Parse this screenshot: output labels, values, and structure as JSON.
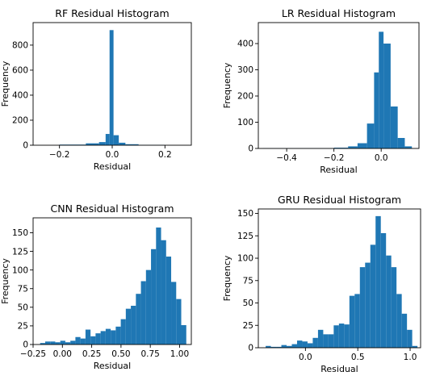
{
  "chart_data": [
    {
      "type": "bar",
      "title": "RF Residual Histogram",
      "xlabel": "Residual",
      "ylabel": "Frequency",
      "xlim": [
        -0.3,
        0.3
      ],
      "ylim": [
        0,
        980
      ],
      "xticks": [
        -0.2,
        0.0,
        0.2
      ],
      "xtick_labels": [
        "−0.2",
        "0.0",
        "0.2"
      ],
      "yticks": [
        0,
        200,
        400,
        600,
        800
      ],
      "ytick_labels": [
        "0",
        "200",
        "400",
        "600",
        "800"
      ],
      "color": "#1f77b4",
      "grid": false,
      "bins": [
        {
          "x0": -0.2,
          "x1": -0.1,
          "value": 5
        },
        {
          "x0": -0.1,
          "x1": -0.05,
          "value": 15
        },
        {
          "x0": -0.05,
          "x1": -0.025,
          "value": 25
        },
        {
          "x0": -0.025,
          "x1": -0.01,
          "value": 90
        },
        {
          "x0": -0.01,
          "x1": 0.005,
          "value": 920
        },
        {
          "x0": 0.005,
          "x1": 0.025,
          "value": 80
        },
        {
          "x0": 0.025,
          "x1": 0.05,
          "value": 20
        },
        {
          "x0": 0.05,
          "x1": 0.1,
          "value": 8
        },
        {
          "x0": 0.1,
          "x1": 0.2,
          "value": 3
        }
      ]
    },
    {
      "type": "bar",
      "title": "LR Residual Histogram",
      "xlabel": "Residual",
      "ylabel": "Frequency",
      "xlim": [
        -0.52,
        0.16
      ],
      "ylim": [
        0,
        480
      ],
      "xticks": [
        -0.4,
        -0.2,
        0.0
      ],
      "xtick_labels": [
        "−0.4",
        "−0.2",
        "0.0"
      ],
      "yticks": [
        0,
        100,
        200,
        300,
        400
      ],
      "ytick_labels": [
        "0",
        "100",
        "200",
        "300",
        "400"
      ],
      "color": "#1f77b4",
      "grid": false,
      "bins": [
        {
          "x0": -0.5,
          "x1": -0.2,
          "value": 1
        },
        {
          "x0": -0.2,
          "x1": -0.14,
          "value": 3
        },
        {
          "x0": -0.14,
          "x1": -0.1,
          "value": 8
        },
        {
          "x0": -0.1,
          "x1": -0.06,
          "value": 20
        },
        {
          "x0": -0.06,
          "x1": -0.03,
          "value": 95
        },
        {
          "x0": -0.03,
          "x1": -0.01,
          "value": 290
        },
        {
          "x0": -0.01,
          "x1": 0.01,
          "value": 445
        },
        {
          "x0": 0.01,
          "x1": 0.04,
          "value": 400
        },
        {
          "x0": 0.04,
          "x1": 0.07,
          "value": 160
        },
        {
          "x0": 0.07,
          "x1": 0.1,
          "value": 40
        },
        {
          "x0": 0.1,
          "x1": 0.13,
          "value": 8
        }
      ]
    },
    {
      "type": "bar",
      "title": "CNN Residual Histogram",
      "xlabel": "Residual",
      "ylabel": "Frequency",
      "xlim": [
        -0.25,
        1.1
      ],
      "ylim": [
        0,
        170
      ],
      "xticks": [
        -0.25,
        0.0,
        0.25,
        0.5,
        0.75,
        1.0
      ],
      "xtick_labels": [
        "−0.25",
        "0.00",
        "0.25",
        "0.50",
        "0.75",
        "1.00"
      ],
      "yticks": [
        0,
        25,
        50,
        75,
        100,
        125,
        150
      ],
      "ytick_labels": [
        "0",
        "25",
        "50",
        "75",
        "100",
        "125",
        "150"
      ],
      "color": "#1f77b4",
      "grid": false,
      "bins": [
        {
          "x0": -0.19,
          "x1": -0.147,
          "value": 2
        },
        {
          "x0": -0.147,
          "x1": -0.104,
          "value": 4
        },
        {
          "x0": -0.104,
          "x1": -0.061,
          "value": 4
        },
        {
          "x0": -0.061,
          "x1": -0.018,
          "value": 3
        },
        {
          "x0": -0.018,
          "x1": 0.025,
          "value": 5
        },
        {
          "x0": 0.025,
          "x1": 0.068,
          "value": 3
        },
        {
          "x0": 0.068,
          "x1": 0.111,
          "value": 5
        },
        {
          "x0": 0.111,
          "x1": 0.154,
          "value": 10
        },
        {
          "x0": 0.154,
          "x1": 0.197,
          "value": 8
        },
        {
          "x0": 0.197,
          "x1": 0.24,
          "value": 20
        },
        {
          "x0": 0.24,
          "x1": 0.283,
          "value": 11
        },
        {
          "x0": 0.283,
          "x1": 0.326,
          "value": 15
        },
        {
          "x0": 0.326,
          "x1": 0.369,
          "value": 18
        },
        {
          "x0": 0.369,
          "x1": 0.412,
          "value": 21
        },
        {
          "x0": 0.412,
          "x1": 0.455,
          "value": 19
        },
        {
          "x0": 0.455,
          "x1": 0.498,
          "value": 24
        },
        {
          "x0": 0.498,
          "x1": 0.541,
          "value": 34
        },
        {
          "x0": 0.541,
          "x1": 0.584,
          "value": 48
        },
        {
          "x0": 0.584,
          "x1": 0.627,
          "value": 52
        },
        {
          "x0": 0.627,
          "x1": 0.67,
          "value": 68
        },
        {
          "x0": 0.67,
          "x1": 0.713,
          "value": 85
        },
        {
          "x0": 0.713,
          "x1": 0.756,
          "value": 100
        },
        {
          "x0": 0.756,
          "x1": 0.799,
          "value": 128
        },
        {
          "x0": 0.799,
          "x1": 0.842,
          "value": 157
        },
        {
          "x0": 0.842,
          "x1": 0.885,
          "value": 140
        },
        {
          "x0": 0.885,
          "x1": 0.928,
          "value": 118
        },
        {
          "x0": 0.928,
          "x1": 0.971,
          "value": 84
        },
        {
          "x0": 0.971,
          "x1": 1.014,
          "value": 61
        },
        {
          "x0": 1.014,
          "x1": 1.057,
          "value": 26
        }
      ]
    },
    {
      "type": "bar",
      "title": "GRU Residual Histogram",
      "xlabel": "Residual",
      "ylabel": "Frequency",
      "xlim": [
        -0.45,
        1.1
      ],
      "ylim": [
        0,
        155
      ],
      "xticks": [
        0.0,
        0.5,
        1.0
      ],
      "xtick_labels": [
        "0.0",
        "0.5",
        "1.0"
      ],
      "yticks": [
        0,
        25,
        50,
        75,
        100,
        125,
        150
      ],
      "ytick_labels": [
        "0",
        "25",
        "50",
        "75",
        "100",
        "125",
        "150"
      ],
      "color": "#1f77b4",
      "grid": false,
      "bins": [
        {
          "x0": -0.38,
          "x1": -0.33,
          "value": 2
        },
        {
          "x0": -0.33,
          "x1": -0.28,
          "value": 1
        },
        {
          "x0": -0.28,
          "x1": -0.23,
          "value": 1
        },
        {
          "x0": -0.23,
          "x1": -0.18,
          "value": 3
        },
        {
          "x0": -0.18,
          "x1": -0.13,
          "value": 2
        },
        {
          "x0": -0.13,
          "x1": -0.08,
          "value": 4
        },
        {
          "x0": -0.08,
          "x1": -0.03,
          "value": 8
        },
        {
          "x0": -0.03,
          "x1": 0.02,
          "value": 7
        },
        {
          "x0": 0.02,
          "x1": 0.07,
          "value": 5
        },
        {
          "x0": 0.07,
          "x1": 0.12,
          "value": 11
        },
        {
          "x0": 0.12,
          "x1": 0.17,
          "value": 20
        },
        {
          "x0": 0.17,
          "x1": 0.22,
          "value": 15
        },
        {
          "x0": 0.22,
          "x1": 0.27,
          "value": 15
        },
        {
          "x0": 0.27,
          "x1": 0.32,
          "value": 25
        },
        {
          "x0": 0.32,
          "x1": 0.37,
          "value": 27
        },
        {
          "x0": 0.37,
          "x1": 0.42,
          "value": 26
        },
        {
          "x0": 0.42,
          "x1": 0.47,
          "value": 58
        },
        {
          "x0": 0.47,
          "x1": 0.52,
          "value": 60
        },
        {
          "x0": 0.52,
          "x1": 0.57,
          "value": 90
        },
        {
          "x0": 0.57,
          "x1": 0.62,
          "value": 95
        },
        {
          "x0": 0.62,
          "x1": 0.67,
          "value": 115
        },
        {
          "x0": 0.67,
          "x1": 0.72,
          "value": 147
        },
        {
          "x0": 0.72,
          "x1": 0.77,
          "value": 128
        },
        {
          "x0": 0.77,
          "x1": 0.82,
          "value": 103
        },
        {
          "x0": 0.82,
          "x1": 0.87,
          "value": 90
        },
        {
          "x0": 0.87,
          "x1": 0.92,
          "value": 60
        },
        {
          "x0": 0.92,
          "x1": 0.97,
          "value": 38
        },
        {
          "x0": 0.97,
          "x1": 1.02,
          "value": 20
        },
        {
          "x0": 1.02,
          "x1": 1.07,
          "value": 2
        }
      ]
    }
  ]
}
